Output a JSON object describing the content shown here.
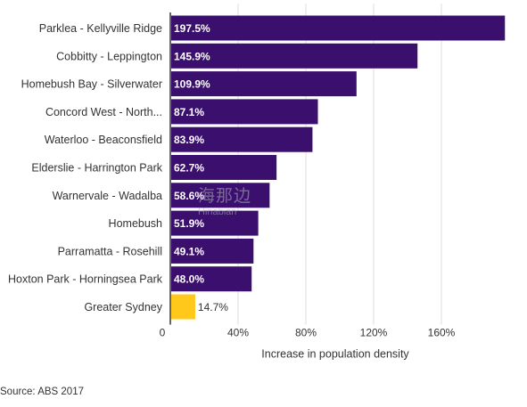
{
  "chart_data": {
    "type": "bar",
    "orientation": "horizontal",
    "categories": [
      "Parklea - Kellyville Ridge",
      "Cobbitty - Leppington",
      "Homebush Bay - Silverwater",
      "Concord West - North...",
      "Waterloo - Beaconsfield",
      "Elderslie - Harrington Park",
      "Warnervale - Wadalba",
      "Homebush",
      "Parramatta - Rosehill",
      "Hoxton Park - Horningsea Park",
      "Greater Sydney"
    ],
    "values": [
      197.5,
      145.9,
      109.9,
      87.1,
      83.9,
      62.7,
      58.6,
      51.9,
      49.1,
      48.0,
      14.7
    ],
    "value_labels": [
      "197.5%",
      "145.9%",
      "109.9%",
      "87.1%",
      "83.9%",
      "62.7%",
      "58.6%",
      "51.9%",
      "49.1%",
      "48.0%",
      "14.7%"
    ],
    "bar_colors": [
      "#3b0f6e",
      "#3b0f6e",
      "#3b0f6e",
      "#3b0f6e",
      "#3b0f6e",
      "#3b0f6e",
      "#3b0f6e",
      "#3b0f6e",
      "#3b0f6e",
      "#3b0f6e",
      "#ffc81a"
    ],
    "xlabel": "Increase in population density",
    "ylabel": "",
    "xlim": [
      0,
      200
    ],
    "xticks": [
      0,
      40,
      80,
      120,
      160
    ],
    "xtick_labels": [
      "0",
      "40%",
      "80%",
      "120%",
      "160%"
    ],
    "grid": true
  },
  "source": "Source: ABS 2017",
  "watermark": {
    "cn": "海那边",
    "en": "Hinabian"
  }
}
